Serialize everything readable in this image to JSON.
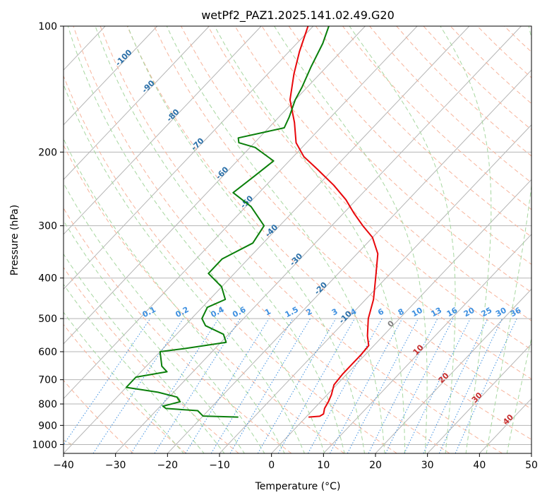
{
  "chart_data": {
    "type": "line",
    "subtype": "skew-T log-P diagram",
    "title": "wetPf2_PAZ1.2025.141.02.49.G20",
    "xlabel": "Temperature (°C)",
    "ylabel": "Pressure (hPa)",
    "xlim": [
      -40,
      50
    ],
    "ylim": [
      1050,
      100
    ],
    "yscale": "log",
    "grid": true,
    "x_ticks": [
      -40,
      -30,
      -20,
      -10,
      0,
      10,
      20,
      30,
      40,
      50
    ],
    "x_tick_labels": [
      "−40",
      "−30",
      "−20",
      "−10",
      "0",
      "10",
      "20",
      "30",
      "40",
      "50"
    ],
    "y_ticks": [
      1000,
      900,
      800,
      700,
      600,
      500,
      400,
      300,
      200,
      100
    ],
    "y_tick_labels": [
      "1000",
      "900",
      "800",
      "700",
      "600",
      "500",
      "400",
      "300",
      "200",
      "100"
    ],
    "colors": {
      "temperature": "#e8070b",
      "dewpoint": "#0a7f0a",
      "isotherm": "#b5b5b5",
      "dry_adiabat": "#f7b49c",
      "moist_adiabat": "#a7d7a0",
      "mixing_ratio": "#3d8fe0",
      "isotherm_label": "#2a6fa8",
      "mixing_label": "#3d8fe0",
      "adiabat_label": "#c62d2d",
      "theta_e_curve": "#d9c2a8"
    },
    "isotherm_labels": [
      {
        "temp": -100,
        "text": "-100"
      },
      {
        "temp": -90,
        "text": "-90"
      },
      {
        "temp": -80,
        "text": "-80"
      },
      {
        "temp": -70,
        "text": "-70"
      },
      {
        "temp": -60,
        "text": "-60"
      },
      {
        "temp": -50,
        "text": "-50"
      },
      {
        "temp": -40,
        "text": "-40"
      },
      {
        "temp": -30,
        "text": "-30"
      },
      {
        "temp": -20,
        "text": "-20"
      },
      {
        "temp": -10,
        "text": "-10"
      }
    ],
    "mixing_ratio_labels": [
      "0.1",
      "0.2",
      "0.4",
      "0.6",
      "1",
      "1.5",
      "2",
      "3",
      "4",
      "6",
      "8",
      "10",
      "13",
      "16",
      "20",
      "25",
      "30",
      "36"
    ],
    "adiabat_labels": [
      {
        "text": "0",
        "color": "#808080"
      },
      {
        "text": "10",
        "color": "#c62d2d"
      },
      {
        "text": "20",
        "color": "#c62d2d"
      },
      {
        "text": "30",
        "color": "#c62d2d"
      },
      {
        "text": "40",
        "color": "#c62d2d"
      }
    ],
    "series": [
      {
        "role": "temperature",
        "points": [
          {
            "p": 860,
            "t": 0.5
          },
          {
            "p": 856,
            "t": 2.5
          },
          {
            "p": 845,
            "t": 2.8
          },
          {
            "p": 820,
            "t": 2.0
          },
          {
            "p": 790,
            "t": 1.5
          },
          {
            "p": 760,
            "t": 0.8
          },
          {
            "p": 720,
            "t": -0.5
          },
          {
            "p": 680,
            "t": -0.8
          },
          {
            "p": 640,
            "t": -0.8
          },
          {
            "p": 610,
            "t": -0.8
          },
          {
            "p": 580,
            "t": -1.0
          },
          {
            "p": 550,
            "t": -3.0
          },
          {
            "p": 500,
            "t": -6.0
          },
          {
            "p": 450,
            "t": -8.5
          },
          {
            "p": 400,
            "t": -12.0
          },
          {
            "p": 350,
            "t": -16.0
          },
          {
            "p": 320,
            "t": -20.0
          },
          {
            "p": 300,
            "t": -24.0
          },
          {
            "p": 280,
            "t": -28.0
          },
          {
            "p": 260,
            "t": -32.0
          },
          {
            "p": 240,
            "t": -37.0
          },
          {
            "p": 220,
            "t": -43.0
          },
          {
            "p": 205,
            "t": -48.0
          },
          {
            "p": 190,
            "t": -52.0
          },
          {
            "p": 170,
            "t": -56.0
          },
          {
            "p": 150,
            "t": -61.0
          },
          {
            "p": 130,
            "t": -65.0
          },
          {
            "p": 115,
            "t": -68.0
          },
          {
            "p": 100,
            "t": -71.0
          }
        ]
      },
      {
        "role": "dewpoint",
        "points": [
          {
            "p": 860,
            "t": -13.0
          },
          {
            "p": 855,
            "t": -20.0
          },
          {
            "p": 830,
            "t": -22.0
          },
          {
            "p": 820,
            "t": -28.5
          },
          {
            "p": 810,
            "t": -29.5
          },
          {
            "p": 790,
            "t": -27.0
          },
          {
            "p": 770,
            "t": -28.5
          },
          {
            "p": 750,
            "t": -33.0
          },
          {
            "p": 730,
            "t": -40.0
          },
          {
            "p": 690,
            "t": -40.0
          },
          {
            "p": 670,
            "t": -35.0
          },
          {
            "p": 650,
            "t": -37.0
          },
          {
            "p": 600,
            "t": -40.0
          },
          {
            "p": 590,
            "t": -36.0
          },
          {
            "p": 570,
            "t": -29.0
          },
          {
            "p": 545,
            "t": -31.0
          },
          {
            "p": 520,
            "t": -36.0
          },
          {
            "p": 500,
            "t": -38.0
          },
          {
            "p": 470,
            "t": -39.0
          },
          {
            "p": 450,
            "t": -37.0
          },
          {
            "p": 420,
            "t": -40.0
          },
          {
            "p": 390,
            "t": -45.0
          },
          {
            "p": 360,
            "t": -45.0
          },
          {
            "p": 330,
            "t": -42.0
          },
          {
            "p": 300,
            "t": -43.0
          },
          {
            "p": 270,
            "t": -49.0
          },
          {
            "p": 250,
            "t": -55.0
          },
          {
            "p": 230,
            "t": -54.0
          },
          {
            "p": 210,
            "t": -53.0
          },
          {
            "p": 195,
            "t": -59.0
          },
          {
            "p": 190,
            "t": -63.0
          },
          {
            "p": 185,
            "t": -64.0
          },
          {
            "p": 175,
            "t": -57.0
          },
          {
            "p": 165,
            "t": -58.0
          },
          {
            "p": 150,
            "t": -60.0
          },
          {
            "p": 140,
            "t": -61.0
          },
          {
            "p": 125,
            "t": -63.0
          },
          {
            "p": 110,
            "t": -65.0
          },
          {
            "p": 100,
            "t": -67.0
          }
        ]
      }
    ]
  }
}
